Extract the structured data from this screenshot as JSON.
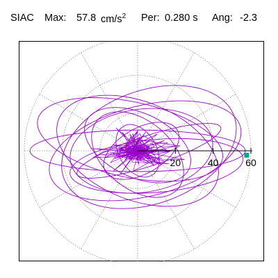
{
  "header": {
    "station": "SIAC",
    "max_label": "Max:",
    "max_value": "57.8",
    "max_unit": "cm/s",
    "max_unit_exp": "2",
    "per_label": "Per:",
    "per_value": "0.280 s",
    "ang_label": "Ang:",
    "ang_value": "-2.3"
  },
  "chart_data": {
    "type": "scatter",
    "title": "SIAC   Max:   57.8 cm/s2  Per:  0.280 s   Ang:  -2.3",
    "radial_ticks": [
      "20",
      "40",
      "60"
    ],
    "radial_tick_values": [
      20,
      40,
      60
    ],
    "radial_max": 60,
    "grid_rings": [
      20,
      40,
      60
    ],
    "grid_spokes_deg": [
      0,
      30,
      60,
      90,
      120,
      150,
      180,
      210,
      240,
      270,
      300,
      330
    ],
    "grid": true,
    "trace_color": "#9900cc",
    "marker_color": "#00aa88",
    "max_point": {
      "radius": 57.8,
      "angle_deg": -2.3
    },
    "trace_ellipses": [
      {
        "rx": 57,
        "ry": 11,
        "tilt": 0,
        "cx": 0,
        "cy": 0
      },
      {
        "rx": 52,
        "ry": 24,
        "tilt": -14,
        "cx": 4,
        "cy": 0
      },
      {
        "rx": 48,
        "ry": 30,
        "tilt": -20,
        "cx": 6,
        "cy": 2
      },
      {
        "rx": 38,
        "ry": 22,
        "tilt": -8,
        "cx": 2,
        "cy": 0
      },
      {
        "rx": 45,
        "ry": 26,
        "tilt": 22,
        "cx": 0,
        "cy": 0
      },
      {
        "rx": 30,
        "ry": 17,
        "tilt": 25,
        "cx": 0,
        "cy": 3
      },
      {
        "rx": 46,
        "ry": 14,
        "tilt": -5,
        "cx": 10,
        "cy": -8
      },
      {
        "rx": 28,
        "ry": 18,
        "tilt": 40,
        "cx": 0,
        "cy": -2
      },
      {
        "rx": 50,
        "ry": 20,
        "tilt": 12,
        "cx": -4,
        "cy": 6
      },
      {
        "rx": 22,
        "ry": 12,
        "tilt": -30,
        "cx": 2,
        "cy": 0
      },
      {
        "rx": 40,
        "ry": 8,
        "tilt": -18,
        "cx": 6,
        "cy": 0
      },
      {
        "rx": 15,
        "ry": 10,
        "tilt": 60,
        "cx": 0,
        "cy": 0
      }
    ]
  }
}
